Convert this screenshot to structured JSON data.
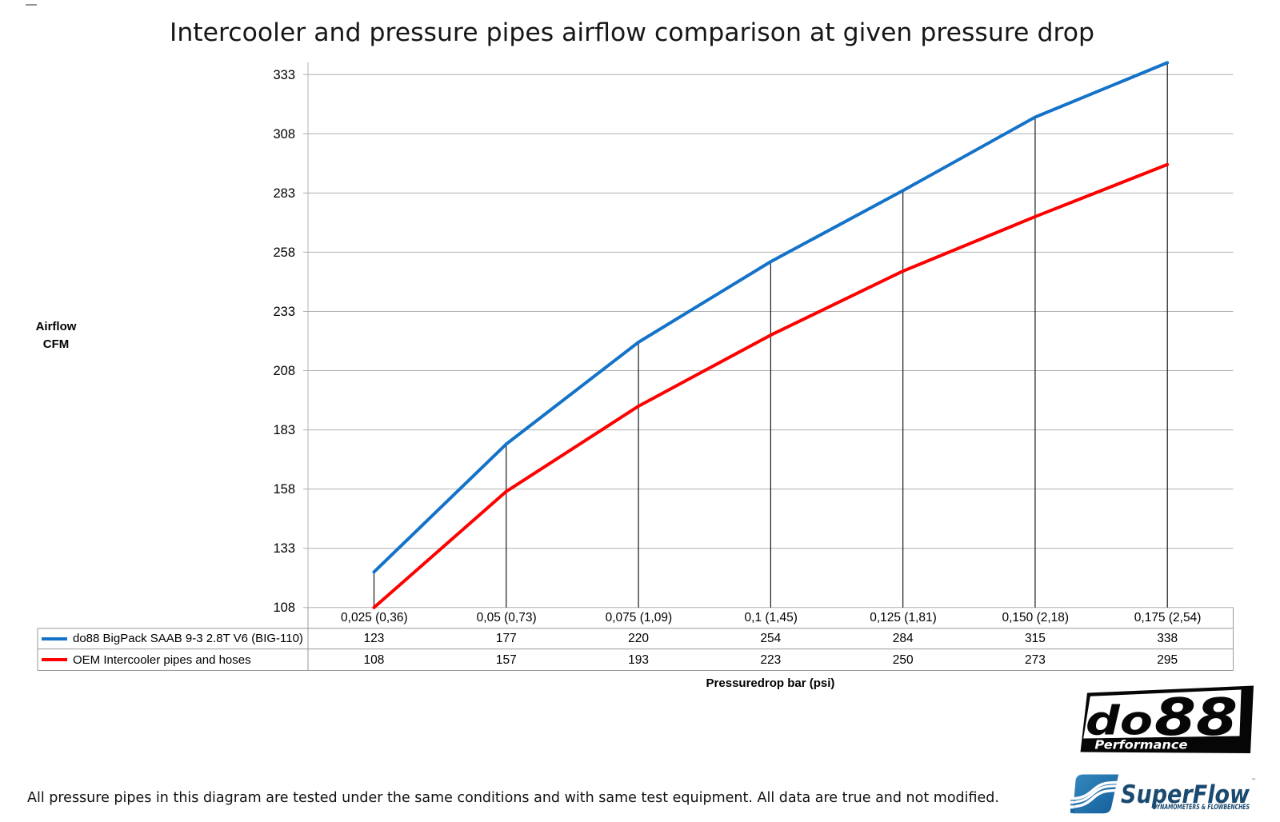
{
  "title": "Intercooler and pressure pipes airflow comparison at given pressure drop",
  "chart_data": {
    "type": "line",
    "title": "Intercooler and pressure pipes airflow comparison at given pressure drop",
    "categories": [
      "0,025 (0,36)",
      "0,05 (0,73)",
      "0,075 (1,09)",
      "0,1 (1,45)",
      "0,125 (1,81)",
      "0,150 (2,18)",
      "0,175 (2,54)"
    ],
    "series": [
      {
        "name": "do88 BigPack SAAB 9-3 2.8T V6 (BIG-110)",
        "color": "#1473C8",
        "values": [
          123,
          177,
          220,
          254,
          284,
          315,
          338
        ]
      },
      {
        "name": "OEM Intercooler pipes and hoses",
        "color": "#FE0000",
        "values": [
          108,
          157,
          193,
          223,
          250,
          273,
          295
        ]
      }
    ],
    "xlabel": "Pressuredrop bar (psi)",
    "ylabel_lines": [
      "Airflow",
      "CFM"
    ],
    "y_ticks": [
      333,
      308,
      283,
      258,
      233,
      208,
      183,
      158,
      133,
      108
    ],
    "ylim": [
      108,
      338
    ],
    "y_step": 25,
    "grid": "horizontal",
    "drop_lines": true,
    "legend_position": "table-left",
    "gridline_color": "#b0b0b0",
    "table_border_color": "#9a9a9a",
    "drop_line_color": "#1a1a1a"
  },
  "footnote": "All pressure pipes in this diagram are tested under the same conditions and with same test equipment. All data are true and not modified.",
  "logos": {
    "do88": {
      "name": "do88",
      "tagline": "Performance"
    },
    "superflow": {
      "name": "SuperFlow",
      "tagline": "DYNAMOMETERS & FLOWBENCHES",
      "trademark": "™"
    }
  }
}
